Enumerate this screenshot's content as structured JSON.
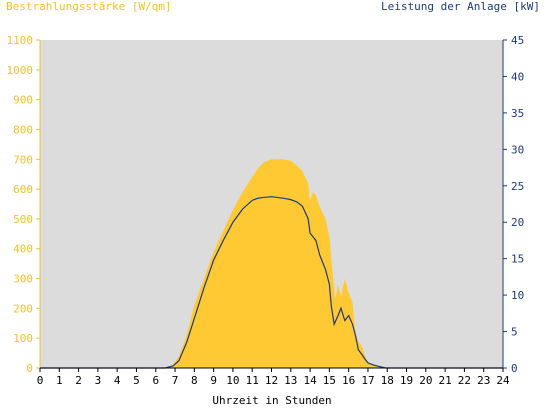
{
  "header": {
    "left_title": "Bestrahlungsstärke [W/qm]",
    "right_title": "Leistung der Anlage [kW]"
  },
  "colors": {
    "plot_bg": "#dcdcdc",
    "irradiance_fill": "#ffc933",
    "power_line": "#1d3a7a",
    "left_axis_text": "#f5bf2a",
    "right_axis_text": "#1d3a7a"
  },
  "chart_data": {
    "type": "area",
    "title": "",
    "xlabel": "Uhrzeit in Stunden",
    "y_left_label": "Bestrahlungsstärke [W/qm]",
    "y_right_label": "Leistung der Anlage [kW]",
    "xlim": [
      0,
      24
    ],
    "ylim_left": [
      0,
      1100
    ],
    "ylim_right": [
      0,
      45
    ],
    "x_ticks": [
      "0",
      "1",
      "2",
      "3",
      "4",
      "5",
      "6",
      "7",
      "8",
      "9",
      "10",
      "11",
      "12",
      "13",
      "14",
      "15",
      "16",
      "17",
      "18",
      "19",
      "20",
      "21",
      "22",
      "23",
      "24"
    ],
    "y_left_ticks": [
      "0",
      "100",
      "200",
      "300",
      "400",
      "500",
      "600",
      "700",
      "800",
      "900",
      "1000",
      "1100"
    ],
    "y_right_ticks": [
      "0",
      "5",
      "10",
      "15",
      "20",
      "25",
      "30",
      "35",
      "40",
      "45"
    ],
    "grid": false,
    "series": [
      {
        "name": "Bestrahlungsstärke [W/qm]",
        "kind": "area",
        "axis": "left",
        "x": [
          0,
          6.5,
          6.9,
          7.2,
          7.6,
          8.0,
          8.5,
          9.0,
          9.5,
          10.0,
          10.5,
          11.0,
          11.3,
          11.6,
          12.0,
          12.3,
          12.6,
          13.0,
          13.3,
          13.6,
          13.9,
          14.0,
          14.15,
          14.3,
          14.5,
          14.8,
          15.0,
          15.15,
          15.3,
          15.45,
          15.6,
          15.8,
          16.0,
          16.2,
          16.35,
          16.5,
          16.7,
          16.85,
          17.0,
          17.3,
          17.6,
          17.9,
          18.2,
          24
        ],
        "y": [
          0,
          0,
          10,
          40,
          110,
          210,
          300,
          390,
          460,
          530,
          590,
          640,
          670,
          690,
          700,
          700,
          700,
          695,
          680,
          660,
          620,
          560,
          590,
          580,
          540,
          500,
          440,
          330,
          230,
          280,
          240,
          300,
          250,
          220,
          120,
          90,
          70,
          40,
          20,
          10,
          5,
          0,
          0,
          0
        ]
      },
      {
        "name": "Leistung der Anlage [kW]",
        "kind": "line",
        "axis": "right",
        "x": [
          0,
          6.5,
          6.9,
          7.2,
          7.6,
          8.0,
          8.5,
          9.0,
          9.5,
          10.0,
          10.5,
          11.0,
          11.3,
          11.6,
          12.0,
          12.3,
          12.6,
          13.0,
          13.3,
          13.6,
          13.9,
          14.0,
          14.15,
          14.3,
          14.5,
          14.8,
          15.0,
          15.1,
          15.25,
          15.45,
          15.6,
          15.8,
          16.0,
          16.2,
          16.35,
          16.5,
          16.7,
          16.85,
          17.0,
          17.3,
          17.6,
          17.9,
          18.2,
          24
        ],
        "y": [
          0,
          0,
          0.3,
          1.0,
          3.5,
          6.8,
          11.0,
          14.8,
          17.5,
          20.0,
          21.8,
          23.0,
          23.3,
          23.4,
          23.5,
          23.4,
          23.3,
          23.1,
          22.8,
          22.2,
          20.5,
          18.5,
          18.0,
          17.5,
          15.5,
          13.5,
          11.5,
          8.5,
          6.0,
          7.2,
          8.2,
          6.5,
          7.2,
          6.0,
          4.5,
          2.5,
          1.8,
          1.2,
          0.7,
          0.4,
          0.2,
          0,
          0,
          0
        ]
      }
    ]
  }
}
